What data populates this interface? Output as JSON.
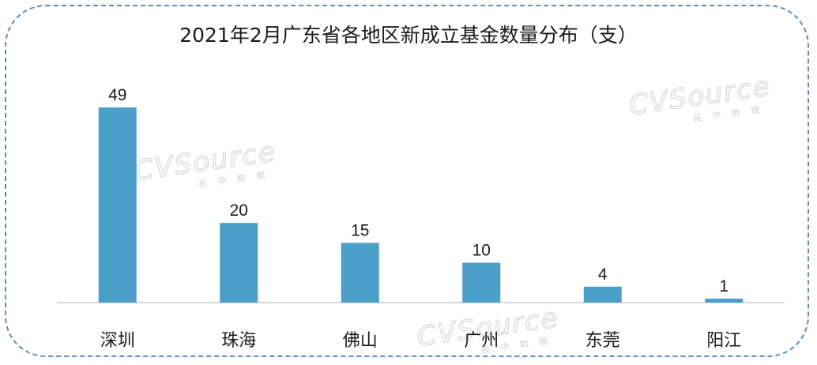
{
  "chart_data": {
    "type": "bar",
    "title": "2021年2月广东省各地区新成立基金数量分布（支）",
    "categories": [
      "深圳",
      "珠海",
      "佛山",
      "广州",
      "东莞",
      "阳江"
    ],
    "values": [
      49,
      20,
      15,
      10,
      4,
      1
    ],
    "ylim": [
      0,
      49
    ],
    "grid": false,
    "legend": "none",
    "bar_color": "#4aa0c8",
    "axis_color": "#c8c8c8"
  },
  "watermark": {
    "brand": "CVSource",
    "tagline": "投 中 数 据"
  },
  "frame_color": "#5b8fb9"
}
